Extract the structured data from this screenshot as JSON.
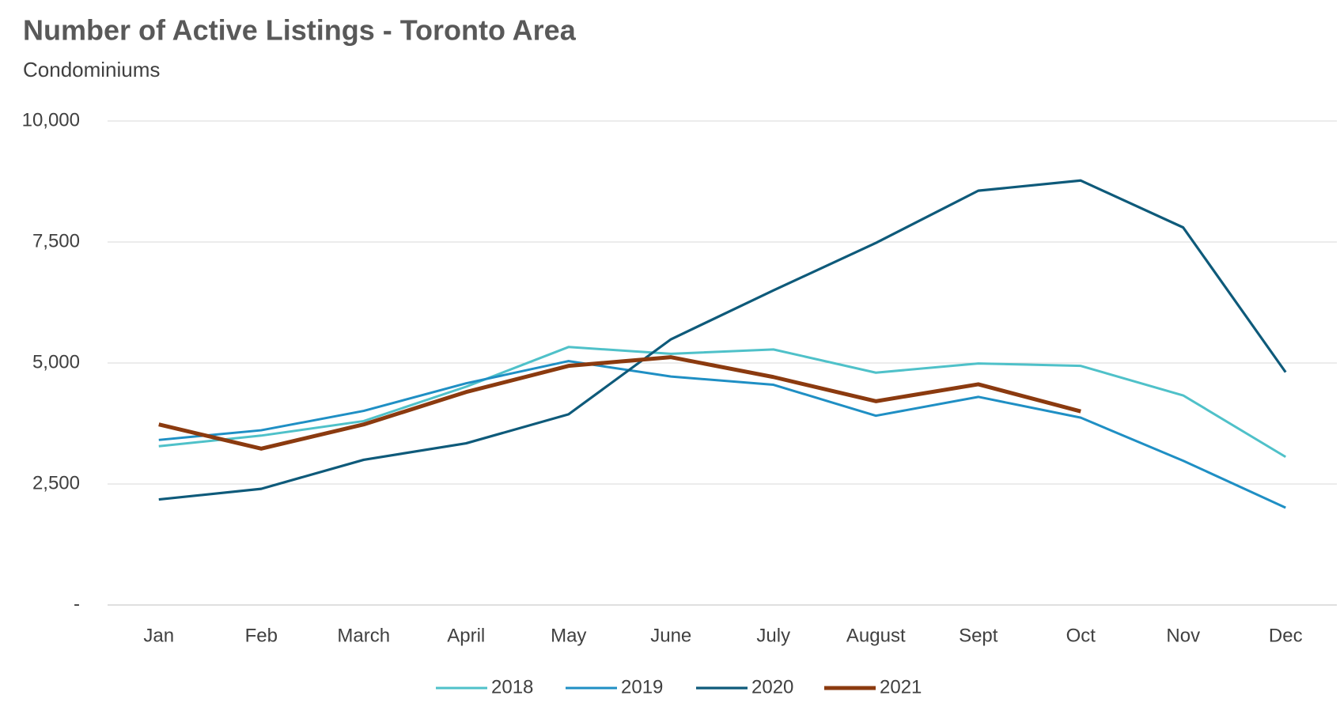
{
  "chart_data": {
    "type": "line",
    "title": "Number of Active Listings - Toronto Area",
    "subtitle": "Condominiums",
    "categories": [
      "Jan",
      "Feb",
      "March",
      "April",
      "May",
      "June",
      "July",
      "August",
      "Sept",
      "Oct",
      "Nov",
      "Dec"
    ],
    "series": [
      {
        "name": "2018",
        "color": "#4fc1c9",
        "values": [
          3280,
          3500,
          3800,
          4510,
          5330,
          5190,
          5280,
          4800,
          4990,
          4940,
          4330,
          3060
        ]
      },
      {
        "name": "2019",
        "color": "#1f8fc4",
        "values": [
          3410,
          3610,
          4010,
          4580,
          5040,
          4720,
          4550,
          3910,
          4300,
          3870,
          2980,
          2010
        ]
      },
      {
        "name": "2020",
        "color": "#0e5a7a",
        "values": [
          2180,
          2400,
          3000,
          3340,
          3940,
          5490,
          6500,
          7480,
          8560,
          8770,
          7800,
          4810
        ]
      },
      {
        "name": "2021",
        "color": "#8b3a0f",
        "values": [
          3730,
          3230,
          3730,
          4400,
          4940,
          5120,
          4710,
          4210,
          4560,
          4000,
          null,
          null
        ]
      }
    ],
    "ylim": [
      0,
      10000
    ],
    "yticks": [
      {
        "value": 0,
        "label": "-"
      },
      {
        "value": 2500,
        "label": "2,500"
      },
      {
        "value": 5000,
        "label": "5,000"
      },
      {
        "value": 7500,
        "label": "7,500"
      },
      {
        "value": 10000,
        "label": "10,000"
      }
    ],
    "grid": true,
    "legend": "bottom"
  }
}
